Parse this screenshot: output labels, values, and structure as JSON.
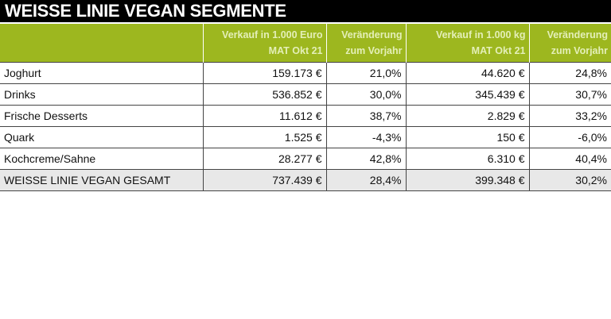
{
  "title": "WEISSE LINIE VEGAN SEGMENTE",
  "headers": [
    {
      "l1": "",
      "l2": ""
    },
    {
      "l1": "Verkauf in 1.000 Euro",
      "l2": "MAT Okt 21"
    },
    {
      "l1": "Veränderung",
      "l2": "zum Vorjahr"
    },
    {
      "l1": "Verkauf in 1.000 kg",
      "l2": "MAT Okt 21"
    },
    {
      "l1": "Veränderung",
      "l2": "zum Vorjahr"
    }
  ],
  "rows": [
    [
      "Joghurt",
      "159.173 €",
      "21,0%",
      "44.620 €",
      "24,8%"
    ],
    [
      "Drinks",
      "536.852 €",
      "30,0%",
      "345.439 €",
      "30,7%"
    ],
    [
      "Frische Desserts",
      "11.612 €",
      "38,7%",
      "2.829 €",
      "33,2%"
    ],
    [
      "Quark",
      "1.525 €",
      "-4,3%",
      "150 €",
      "-6,0%"
    ],
    [
      "Kochcreme/Sahne",
      "28.277 €",
      "42,8%",
      "6.310 €",
      "40,4%"
    ],
    [
      "WEISSE LINIE VEGAN GESAMT",
      "737.439 €",
      "28,4%",
      "399.348 €",
      "30,2%"
    ]
  ],
  "colors": {
    "header_green": "#9db71f",
    "title_bg": "#000000",
    "total_bg": "#e8e8e8"
  }
}
